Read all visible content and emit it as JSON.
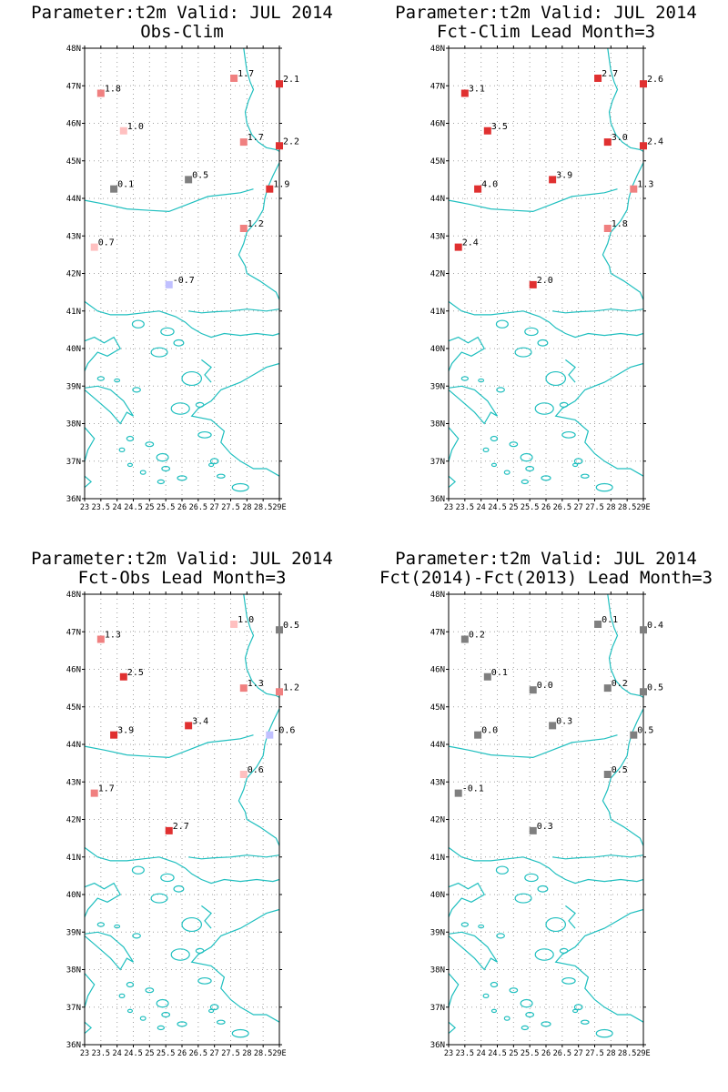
{
  "colors": {
    "coast": "#1fbfbf",
    "grid": "#a0a0a0",
    "frame": "#000000",
    "neutral": "#7f7f7f",
    "negative": "#c0c0ff",
    "pos_light": "#ffc0c0",
    "pos_mid": "#f08080",
    "pos_strong": "#e03030"
  },
  "axes": {
    "x_ticks": [
      "23",
      "23.5",
      "24",
      "24.5",
      "25",
      "25.5",
      "26",
      "26.5",
      "27",
      "27.5",
      "28",
      "28.5",
      "29E"
    ],
    "y_ticks": [
      "36N",
      "37N",
      "38N",
      "39N",
      "40N",
      "41N",
      "42N",
      "43N",
      "44N",
      "45N",
      "46N",
      "47N",
      "48N"
    ],
    "lon_range": [
      23,
      29
    ],
    "lat_range": [
      36,
      48
    ]
  },
  "panels": [
    {
      "title_line1": "Parameter:t2m Valid: JUL 2014",
      "title_line2": "Obs-Clim",
      "points": [
        {
          "lon": 23.5,
          "lat": 46.8,
          "label": "1.8",
          "value": 1.8
        },
        {
          "lon": 24.2,
          "lat": 45.8,
          "label": "1.0",
          "value": 1.0
        },
        {
          "lon": 23.9,
          "lat": 44.25,
          "label": "0.1",
          "value": 0.1
        },
        {
          "lon": 23.3,
          "lat": 42.7,
          "label": "0.7",
          "value": 0.7
        },
        {
          "lon": 25.6,
          "lat": 41.7,
          "label": "-0.7",
          "value": -0.7
        },
        {
          "lon": 26.2,
          "lat": 44.5,
          "label": "0.5",
          "value": 0.5
        },
        {
          "lon": 27.6,
          "lat": 47.2,
          "label": "1.7",
          "value": 1.7
        },
        {
          "lon": 27.9,
          "lat": 45.5,
          "label": "1.7",
          "value": 1.7
        },
        {
          "lon": 27.9,
          "lat": 43.2,
          "label": "1.2",
          "value": 1.2
        },
        {
          "lon": 28.7,
          "lat": 44.25,
          "label": "1.9",
          "value": 1.9
        },
        {
          "lon": 29.0,
          "lat": 47.05,
          "label": "2.1",
          "value": 2.1
        },
        {
          "lon": 29.0,
          "lat": 45.4,
          "label": "2.2",
          "value": 2.2
        }
      ]
    },
    {
      "title_line1": "Parameter:t2m Valid: JUL 2014",
      "title_line2": "Fct-Clim Lead Month=3",
      "points": [
        {
          "lon": 23.5,
          "lat": 46.8,
          "label": "3.1",
          "value": 3.1
        },
        {
          "lon": 24.2,
          "lat": 45.8,
          "label": "3.5",
          "value": 3.5
        },
        {
          "lon": 23.9,
          "lat": 44.25,
          "label": "4.0",
          "value": 4.0
        },
        {
          "lon": 23.3,
          "lat": 42.7,
          "label": "2.4",
          "value": 2.4
        },
        {
          "lon": 25.6,
          "lat": 41.7,
          "label": "2.0",
          "value": 2.0
        },
        {
          "lon": 26.2,
          "lat": 44.5,
          "label": "3.9",
          "value": 3.9
        },
        {
          "lon": 27.6,
          "lat": 47.2,
          "label": "2.7",
          "value": 2.7
        },
        {
          "lon": 27.9,
          "lat": 45.5,
          "label": "3.0",
          "value": 3.0
        },
        {
          "lon": 27.9,
          "lat": 43.2,
          "label": "1.8",
          "value": 1.8
        },
        {
          "lon": 28.7,
          "lat": 44.25,
          "label": "1.3",
          "value": 1.3
        },
        {
          "lon": 29.0,
          "lat": 47.05,
          "label": "2.6",
          "value": 2.6
        },
        {
          "lon": 29.0,
          "lat": 45.4,
          "label": "2.4",
          "value": 2.4
        }
      ]
    },
    {
      "title_line1": "Parameter:t2m Valid: JUL 2014",
      "title_line2": "Fct-Obs Lead Month=3",
      "points": [
        {
          "lon": 23.5,
          "lat": 46.8,
          "label": "1.3",
          "value": 1.3
        },
        {
          "lon": 24.2,
          "lat": 45.8,
          "label": "2.5",
          "value": 2.5
        },
        {
          "lon": 23.9,
          "lat": 44.25,
          "label": "3.9",
          "value": 3.9
        },
        {
          "lon": 23.3,
          "lat": 42.7,
          "label": "1.7",
          "value": 1.7
        },
        {
          "lon": 25.6,
          "lat": 41.7,
          "label": "2.7",
          "value": 2.7
        },
        {
          "lon": 26.2,
          "lat": 44.5,
          "label": "3.4",
          "value": 3.4
        },
        {
          "lon": 27.6,
          "lat": 47.2,
          "label": "1.0",
          "value": 1.0
        },
        {
          "lon": 27.9,
          "lat": 45.5,
          "label": "1.3",
          "value": 1.3
        },
        {
          "lon": 27.9,
          "lat": 43.2,
          "label": "0.6",
          "value": 0.6
        },
        {
          "lon": 28.7,
          "lat": 44.25,
          "label": "-0.6",
          "value": -0.6
        },
        {
          "lon": 29.0,
          "lat": 47.05,
          "label": "0.5",
          "value": 0.5
        },
        {
          "lon": 29.0,
          "lat": 45.4,
          "label": "1.2",
          "value": 1.2
        }
      ]
    },
    {
      "title_line1": "Parameter:t2m Valid: JUL 2014",
      "title_line2": "Fct(2014)-Fct(2013) Lead Month=3",
      "points": [
        {
          "lon": 23.5,
          "lat": 46.8,
          "label": "0.2",
          "value": 0.2
        },
        {
          "lon": 24.2,
          "lat": 45.8,
          "label": "0.1",
          "value": 0.1
        },
        {
          "lon": 23.9,
          "lat": 44.25,
          "label": "0.0",
          "value": 0.0
        },
        {
          "lon": 23.3,
          "lat": 42.7,
          "label": "-0.1",
          "value": -0.1
        },
        {
          "lon": 25.6,
          "lat": 41.7,
          "label": "0.3",
          "value": 0.3
        },
        {
          "lon": 25.6,
          "lat": 45.45,
          "label": "0.0",
          "value": 0.0
        },
        {
          "lon": 26.2,
          "lat": 44.5,
          "label": "0.3",
          "value": 0.3
        },
        {
          "lon": 27.6,
          "lat": 47.2,
          "label": "0.1",
          "value": 0.1
        },
        {
          "lon": 27.9,
          "lat": 45.5,
          "label": "0.2",
          "value": 0.2
        },
        {
          "lon": 27.9,
          "lat": 43.2,
          "label": "0.5",
          "value": 0.5
        },
        {
          "lon": 28.7,
          "lat": 44.25,
          "label": "0.5",
          "value": 0.5
        },
        {
          "lon": 29.0,
          "lat": 47.05,
          "label": "0.4",
          "value": 0.4
        },
        {
          "lon": 29.0,
          "lat": 45.4,
          "label": "0.5",
          "value": 0.5
        }
      ]
    }
  ]
}
